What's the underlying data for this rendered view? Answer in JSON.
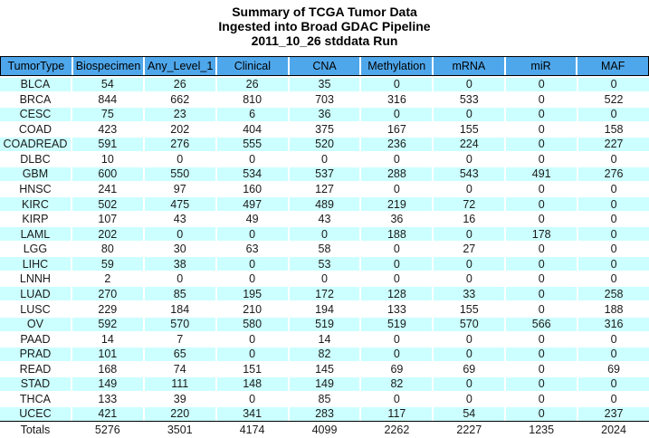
{
  "title": {
    "line1": "Summary of TCGA Tumor Data",
    "line2": "Ingested into Broad GDAC Pipeline",
    "line3": "2011_10_26 stddata Run"
  },
  "table": {
    "columns": [
      "TumorType",
      "Biospecimen",
      "Any_Level_1",
      "Clinical",
      "CNA",
      "Methylation",
      "mRNA",
      "miR",
      "MAF"
    ],
    "rows": [
      [
        "BLCA",
        "54",
        "26",
        "26",
        "35",
        "0",
        "0",
        "0",
        "0"
      ],
      [
        "BRCA",
        "844",
        "662",
        "810",
        "703",
        "316",
        "533",
        "0",
        "522"
      ],
      [
        "CESC",
        "75",
        "23",
        "6",
        "36",
        "0",
        "0",
        "0",
        "0"
      ],
      [
        "COAD",
        "423",
        "202",
        "404",
        "375",
        "167",
        "155",
        "0",
        "158"
      ],
      [
        "COADREAD",
        "591",
        "276",
        "555",
        "520",
        "236",
        "224",
        "0",
        "227"
      ],
      [
        "DLBC",
        "10",
        "0",
        "0",
        "0",
        "0",
        "0",
        "0",
        "0"
      ],
      [
        "GBM",
        "600",
        "550",
        "534",
        "537",
        "288",
        "543",
        "491",
        "276"
      ],
      [
        "HNSC",
        "241",
        "97",
        "160",
        "127",
        "0",
        "0",
        "0",
        "0"
      ],
      [
        "KIRC",
        "502",
        "475",
        "497",
        "489",
        "219",
        "72",
        "0",
        "0"
      ],
      [
        "KIRP",
        "107",
        "43",
        "49",
        "43",
        "36",
        "16",
        "0",
        "0"
      ],
      [
        "LAML",
        "202",
        "0",
        "0",
        "0",
        "188",
        "0",
        "178",
        "0"
      ],
      [
        "LGG",
        "80",
        "30",
        "63",
        "58",
        "0",
        "27",
        "0",
        "0"
      ],
      [
        "LIHC",
        "59",
        "38",
        "0",
        "53",
        "0",
        "0",
        "0",
        "0"
      ],
      [
        "LNNH",
        "2",
        "0",
        "0",
        "0",
        "0",
        "0",
        "0",
        "0"
      ],
      [
        "LUAD",
        "270",
        "85",
        "195",
        "172",
        "128",
        "33",
        "0",
        "258"
      ],
      [
        "LUSC",
        "229",
        "184",
        "210",
        "194",
        "133",
        "155",
        "0",
        "188"
      ],
      [
        "OV",
        "592",
        "570",
        "580",
        "519",
        "519",
        "570",
        "566",
        "316"
      ],
      [
        "PAAD",
        "14",
        "7",
        "0",
        "14",
        "0",
        "0",
        "0",
        "0"
      ],
      [
        "PRAD",
        "101",
        "65",
        "0",
        "82",
        "0",
        "0",
        "0",
        "0"
      ],
      [
        "READ",
        "168",
        "74",
        "151",
        "145",
        "69",
        "69",
        "0",
        "69"
      ],
      [
        "STAD",
        "149",
        "111",
        "148",
        "149",
        "82",
        "0",
        "0",
        "0"
      ],
      [
        "THCA",
        "133",
        "39",
        "0",
        "85",
        "0",
        "0",
        "0",
        "0"
      ],
      [
        "UCEC",
        "421",
        "220",
        "341",
        "283",
        "117",
        "54",
        "0",
        "237"
      ]
    ],
    "totals": [
      "Totals",
      "5276",
      "3501",
      "4174",
      "4099",
      "2262",
      "2227",
      "1235",
      "2024"
    ]
  },
  "colors": {
    "header_bg": "#4fa7eb",
    "stripe_bg": "#ccffff",
    "rule": "#000000"
  }
}
